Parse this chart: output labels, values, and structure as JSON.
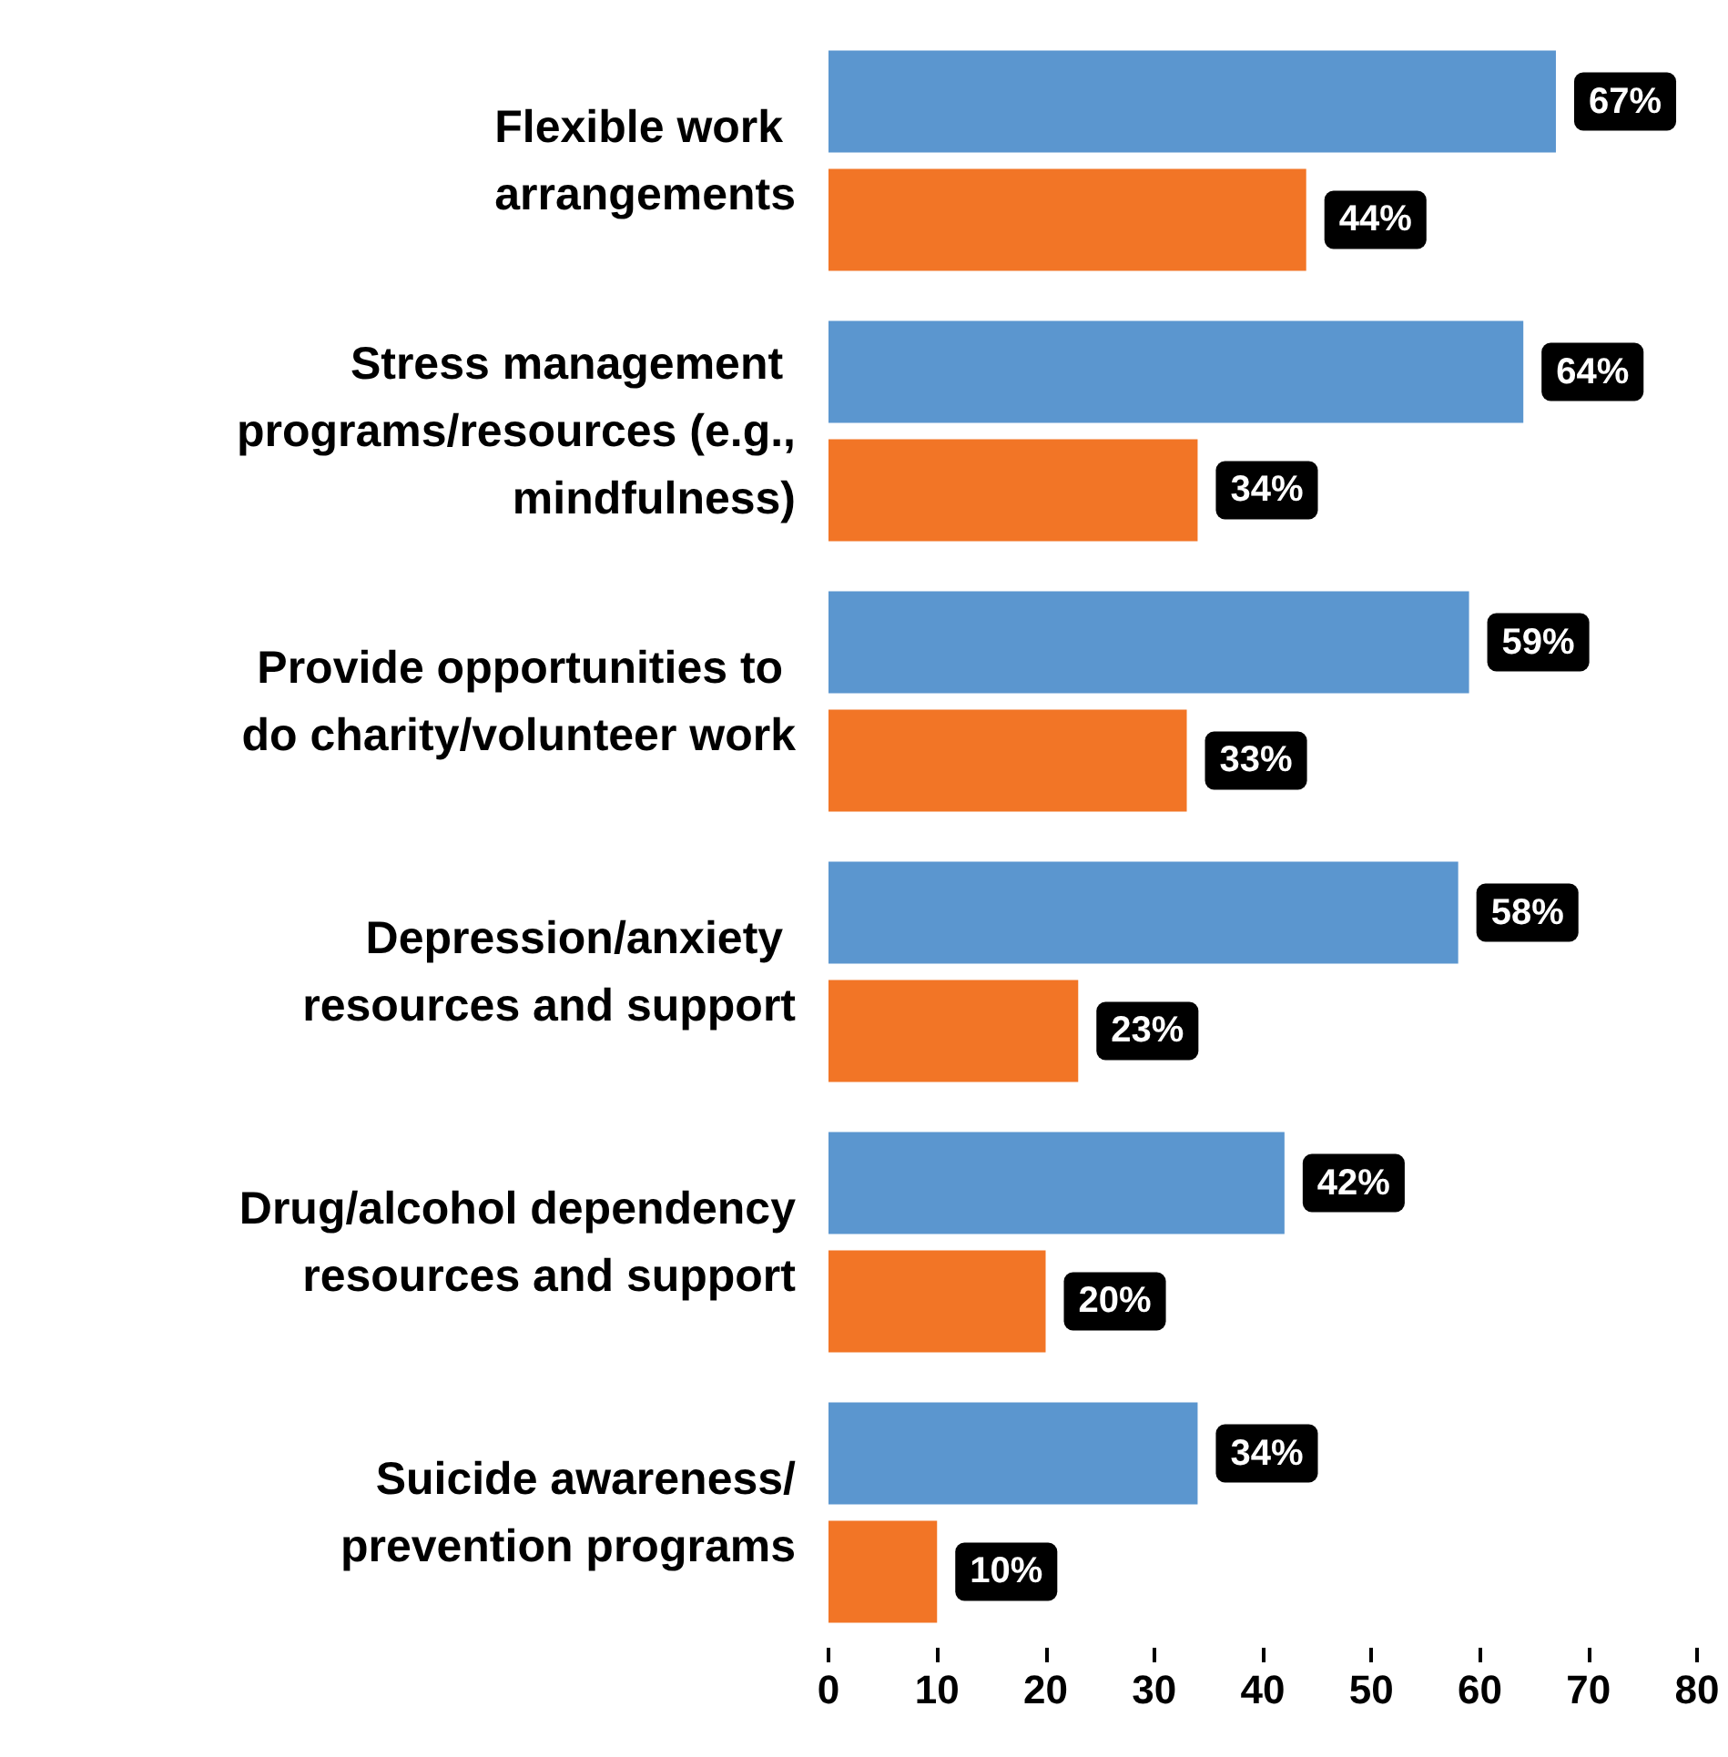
{
  "chart_data": {
    "type": "bar",
    "orientation": "horizontal",
    "categories": [
      "Flexible work arrangements",
      "Stress management programs/resources (e.g., mindfulness)",
      "Provide opportunities to do charity/volunteer work",
      "Depression/anxiety resources and support",
      "Drug/alcohol dependency resources and support",
      "Suicide awareness/prevention programs"
    ],
    "series": [
      {
        "color": "#5b96cf",
        "values": [
          67,
          64,
          59,
          58,
          42,
          34
        ],
        "value_labels": [
          "67%",
          "64%",
          "59%",
          "58%",
          "42%",
          "34%"
        ]
      },
      {
        "color": "#f27526",
        "values": [
          44,
          34,
          33,
          23,
          20,
          10
        ],
        "value_labels": [
          "44%",
          "34%",
          "33%",
          "23%",
          "20%",
          "10%"
        ]
      }
    ],
    "xlim": [
      0,
      80
    ],
    "xticks": [
      0,
      10,
      20,
      30,
      40,
      50,
      60,
      70,
      80
    ],
    "grid": false
  }
}
